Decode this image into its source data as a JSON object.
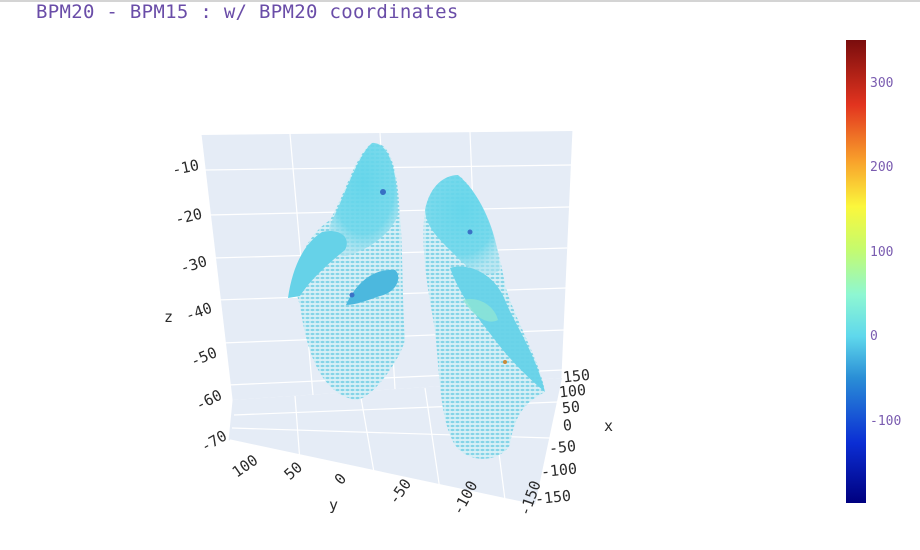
{
  "title": "BPM20 - BPM15 : w/ BPM20 coordinates",
  "chart_data": {
    "type": "scatter3d",
    "title": "BPM20 - BPM15 : w/ BPM20 coordinates",
    "axes": {
      "x": {
        "label": "x",
        "ticks": [
          "150",
          "100",
          "50",
          "0",
          "-50",
          "-100",
          "-150"
        ]
      },
      "y": {
        "label": "y",
        "ticks": [
          "100",
          "50",
          "0",
          "-50",
          "-100",
          "-150"
        ]
      },
      "z": {
        "label": "z",
        "ticks": [
          "-10",
          "-20",
          "-30",
          "-40",
          "-50",
          "-60",
          "-70"
        ]
      }
    },
    "colorbar": {
      "colorscale": "jet",
      "range": [
        -200,
        350
      ],
      "ticks": [
        "300",
        "200",
        "100",
        "0",
        "-100"
      ]
    },
    "dominant_value_range": [
      -10,
      40
    ],
    "grid": true
  },
  "colors": {
    "title": "#6a4da8",
    "scene_bg": "#e5ecf6",
    "grid": "#ffffff",
    "points_main": "#5fd0e6",
    "points_light": "#a9e2ef"
  }
}
